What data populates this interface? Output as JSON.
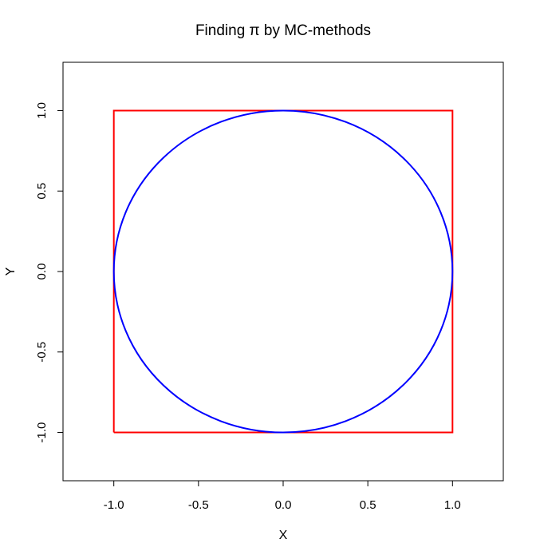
{
  "chart_data": {
    "type": "line",
    "title": "Finding π by MC-methods",
    "xlabel": "X",
    "ylabel": "Y",
    "xlim": [
      -1.3,
      1.3
    ],
    "ylim": [
      -1.3,
      1.3
    ],
    "x_ticks": [
      "-1.0",
      "-0.5",
      "0.0",
      "0.5",
      "1.0"
    ],
    "y_ticks": [
      "-1.0",
      "-0.5",
      "0.0",
      "0.5",
      "1.0"
    ],
    "grid": false,
    "legend": "none",
    "series": [
      {
        "shape": "square",
        "color": "#ff0000",
        "x": [
          -1,
          1,
          1,
          -1,
          -1
        ],
        "y": [
          -1,
          -1,
          1,
          1,
          -1
        ]
      },
      {
        "shape": "circle",
        "color": "#0000ff",
        "center": [
          0,
          0
        ],
        "radius": 1
      }
    ]
  }
}
